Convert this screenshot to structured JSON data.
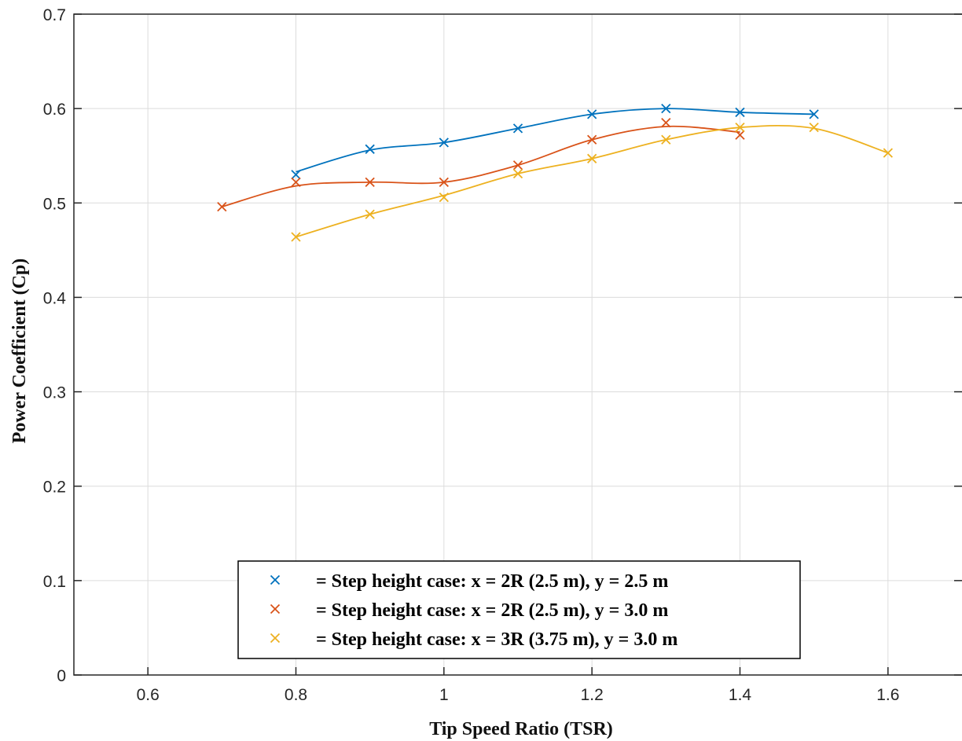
{
  "chart_data": {
    "type": "line",
    "title": "",
    "xlabel": "Tip Speed Ratio (TSR)",
    "ylabel": "Power Coefficient (Cp)",
    "xlim": [
      0.5,
      1.7
    ],
    "ylim": [
      0,
      0.7
    ],
    "x_ticks": [
      0.6,
      0.8,
      1.0,
      1.2,
      1.4,
      1.6
    ],
    "x_tick_labels": [
      "0.6",
      "0.8",
      "1",
      "1.2",
      "1.4",
      "1.6"
    ],
    "y_ticks": [
      0,
      0.1,
      0.2,
      0.3,
      0.4,
      0.5,
      0.6,
      0.7
    ],
    "y_tick_labels": [
      "0",
      "0.1",
      "0.2",
      "0.3",
      "0.4",
      "0.5",
      "0.6",
      "0.7"
    ],
    "grid": true,
    "legend_position": "bottom-center",
    "marker": "x",
    "series": [
      {
        "name": "= Step height case: x = 2R (2.5 m), y = 2.5 m",
        "color": "#0072BD",
        "x": [
          0.8,
          0.9,
          1.0,
          1.1,
          1.2,
          1.3,
          1.4,
          1.5
        ],
        "y": [
          0.533,
          0.556,
          0.564,
          0.579,
          0.594,
          0.6,
          0.596,
          0.594
        ],
        "markers": [
          {
            "x": 0.8,
            "y": 0.53
          },
          {
            "x": 0.9,
            "y": 0.557
          },
          {
            "x": 1.0,
            "y": 0.564
          },
          {
            "x": 1.1,
            "y": 0.579
          },
          {
            "x": 1.2,
            "y": 0.594
          },
          {
            "x": 1.3,
            "y": 0.6
          },
          {
            "x": 1.4,
            "y": 0.596
          },
          {
            "x": 1.5,
            "y": 0.594
          }
        ]
      },
      {
        "name": "= Step height case: x = 2R (2.5 m), y = 3.0 m",
        "color": "#D95319",
        "x": [
          0.7,
          0.8,
          0.9,
          1.0,
          1.1,
          1.2,
          1.3,
          1.4
        ],
        "y": [
          0.496,
          0.518,
          0.522,
          0.522,
          0.54,
          0.567,
          0.581,
          0.575
        ],
        "markers": [
          {
            "x": 0.7,
            "y": 0.496
          },
          {
            "x": 0.8,
            "y": 0.522
          },
          {
            "x": 0.9,
            "y": 0.522
          },
          {
            "x": 1.0,
            "y": 0.522
          },
          {
            "x": 1.1,
            "y": 0.54
          },
          {
            "x": 1.2,
            "y": 0.567
          },
          {
            "x": 1.3,
            "y": 0.585
          },
          {
            "x": 1.4,
            "y": 0.572
          }
        ]
      },
      {
        "name": "= Step height case: x = 3R (3.75 m), y = 3.0 m",
        "color": "#EDB120",
        "x": [
          0.8,
          0.9,
          1.0,
          1.1,
          1.2,
          1.3,
          1.4,
          1.5,
          1.6
        ],
        "y": [
          0.464,
          0.488,
          0.508,
          0.531,
          0.547,
          0.567,
          0.58,
          0.579,
          0.553
        ],
        "markers": [
          {
            "x": 0.8,
            "y": 0.464
          },
          {
            "x": 0.9,
            "y": 0.488
          },
          {
            "x": 1.0,
            "y": 0.506
          },
          {
            "x": 1.1,
            "y": 0.531
          },
          {
            "x": 1.2,
            "y": 0.547
          },
          {
            "x": 1.3,
            "y": 0.567
          },
          {
            "x": 1.4,
            "y": 0.58
          },
          {
            "x": 1.5,
            "y": 0.58
          },
          {
            "x": 1.6,
            "y": 0.553
          }
        ]
      }
    ]
  }
}
